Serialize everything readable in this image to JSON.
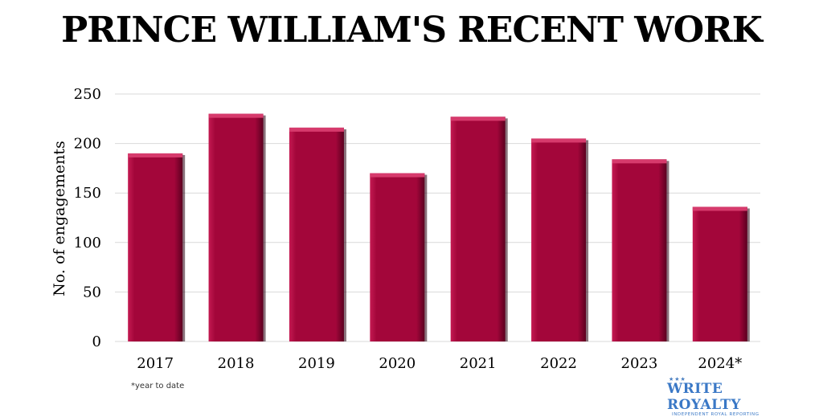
{
  "chart_data": {
    "type": "bar",
    "title": "PRINCE WILLIAM'S RECENT WORK",
    "xlabel": "",
    "ylabel": "No. of engagements",
    "categories": [
      "2017",
      "2018",
      "2019",
      "2020",
      "2021",
      "2022",
      "2023",
      "2024*"
    ],
    "values": [
      190,
      230,
      216,
      170,
      227,
      205,
      184,
      136
    ],
    "ylim": [
      0,
      250
    ],
    "yticks": [
      0,
      50,
      100,
      150,
      200,
      250
    ],
    "grid": true,
    "bar_color": "#a3063a",
    "footnote": "*year to date"
  },
  "branding": {
    "name": "WRITE ROYALTY",
    "tagline": "INDEPENDENT ROYAL REPORTING",
    "color": "#3a78c6"
  }
}
